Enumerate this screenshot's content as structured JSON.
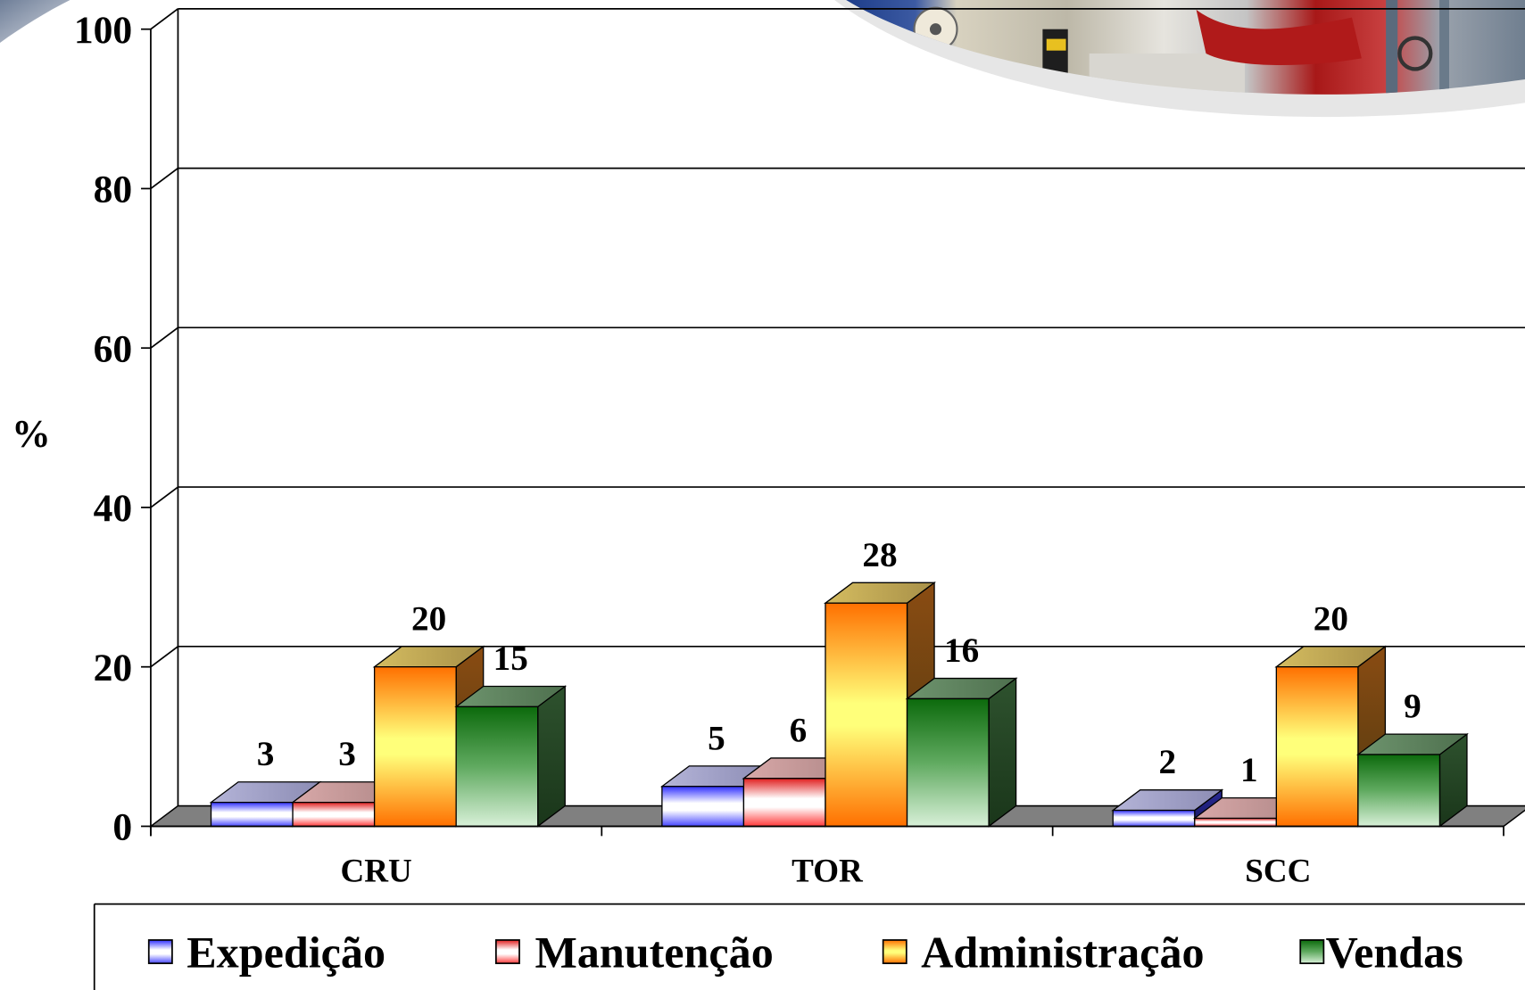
{
  "chart_data": {
    "type": "bar",
    "three_d": true,
    "ylabel": "%",
    "categories": [
      "CRU",
      "TOR",
      "SCC"
    ],
    "series": [
      {
        "name": "Expedição",
        "values": [
          3,
          5,
          2
        ],
        "color": "#3535ff"
      },
      {
        "name": "Manutenção",
        "values": [
          3,
          6,
          1
        ],
        "color": "#e02020"
      },
      {
        "name": "Administração",
        "values": [
          20,
          28,
          20
        ],
        "color": "#ff7a00"
      },
      {
        "name": "Vendas",
        "values": [
          15,
          16,
          9
        ],
        "color": "#1a7a1a"
      }
    ],
    "ylim": [
      0,
      100
    ],
    "yticks": [
      0,
      20,
      40,
      60,
      80,
      100
    ],
    "grid": true,
    "data_labels": true,
    "legend_position": "bottom"
  },
  "colors": {
    "floor": "#808080",
    "background": "#ffffff",
    "text": "#000000"
  }
}
